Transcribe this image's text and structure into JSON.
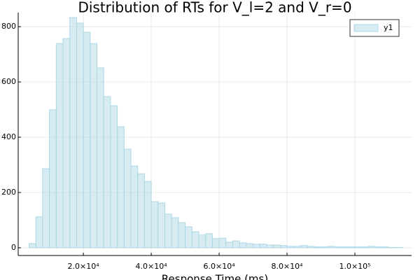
{
  "chart_data": {
    "type": "histogram",
    "title": "Distribution of RTs for V_l=2 and V_r=0",
    "x_label": "Response Time (ms)",
    "bins": [
      4000,
      6000,
      8000,
      10000,
      12000,
      14000,
      16000,
      18000,
      20000,
      22000,
      24000,
      26000,
      28000,
      30000,
      32000,
      34000,
      36000,
      38000,
      40000,
      42000,
      44000,
      46000,
      48000,
      50000,
      52000,
      54000,
      56000,
      58000,
      60000,
      62000,
      64000,
      66000,
      68000,
      70000,
      72000,
      74000,
      76000,
      78000,
      80000,
      82000,
      84000,
      86000,
      88000,
      90000,
      92000,
      94000,
      96000,
      98000,
      100000,
      102000,
      104000,
      106000,
      108000,
      110000,
      112000,
      114000
    ],
    "series": [
      {
        "name": "y1",
        "color": "#add8e6",
        "values": [
          15,
          112,
          286,
          499,
          739,
          757,
          833,
          813,
          780,
          739,
          651,
          547,
          514,
          438,
          357,
          296,
          268,
          240,
          167,
          162,
          122,
          109,
          91,
          76,
          58,
          46,
          51,
          33,
          35,
          20,
          25,
          18,
          15,
          13,
          13,
          10,
          10,
          8,
          5,
          5,
          8,
          5,
          3,
          3,
          5,
          3,
          3,
          3,
          3,
          3,
          5,
          3,
          3,
          1,
          1
        ]
      }
    ],
    "xlim": [
      800,
      116700
    ],
    "ylim": [
      -28,
      851
    ],
    "xticks": [
      {
        "value": 20000,
        "label": "2.0×10⁴"
      },
      {
        "value": 40000,
        "label": "4.0×10⁴"
      },
      {
        "value": 60000,
        "label": "6.0×10⁴"
      },
      {
        "value": 80000,
        "label": "8.0×10⁴"
      },
      {
        "value": 100000,
        "label": "1.0×10⁵"
      }
    ],
    "yticks": [
      0,
      200,
      400,
      600,
      800
    ],
    "grid": true,
    "legend": "top-right"
  }
}
